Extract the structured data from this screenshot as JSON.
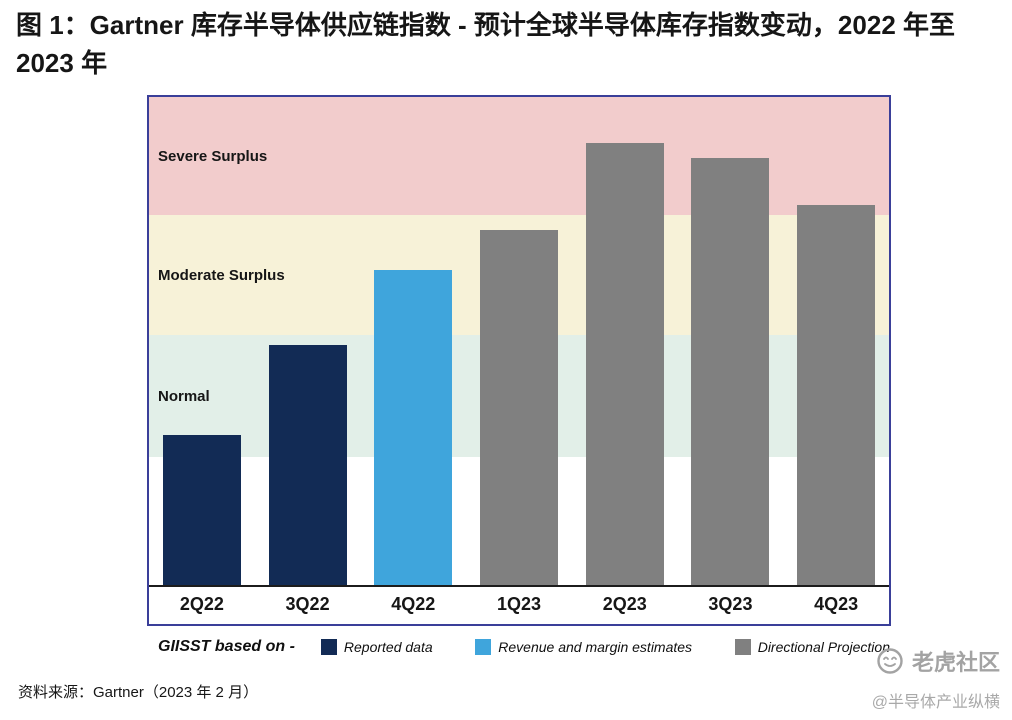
{
  "page": {
    "title": "图 1：Gartner 库存半导体供应链指数 - 预计全球半导体库存指数变动，2022 年至 2023 年",
    "source": "资料来源：Gartner（2023 年 2 月）",
    "watermark_brand": "老虎社区",
    "watermark_handle": "@半导体产业纵横"
  },
  "chart_data": {
    "type": "bar",
    "title": "Gartner 库存半导体供应链指数 (GIISST) - 预计全球半导体库存指数变动，2022 年至 2023 年",
    "categories": [
      "2Q22",
      "3Q22",
      "4Q22",
      "1Q23",
      "2Q23",
      "3Q23",
      "4Q23"
    ],
    "values_pct_of_plot_height": [
      30.7,
      49.2,
      64.5,
      72.7,
      90.6,
      87.5,
      77.9
    ],
    "bar_series": [
      "reported",
      "reported",
      "estimate",
      "projection",
      "projection",
      "projection",
      "projection"
    ],
    "series_colors": {
      "reported": "#122b55",
      "estimate": "#3fa5dc",
      "projection": "#808080"
    },
    "bands": [
      {
        "label": "Severe Surplus",
        "from_pct": 75.8,
        "to_pct": 100,
        "color": "#f2cccc"
      },
      {
        "label": "Moderate Surplus",
        "from_pct": 51.2,
        "to_pct": 75.8,
        "color": "#f7f2d8"
      },
      {
        "label": "Normal",
        "from_pct": 26.2,
        "to_pct": 51.2,
        "color": "#e2efe8"
      },
      {
        "label": "",
        "from_pct": 0,
        "to_pct": 26.2,
        "color": "#ffffff"
      }
    ],
    "legend_title": "GIISST based on -",
    "legend": [
      {
        "label": "Reported data",
        "color": "#122b55"
      },
      {
        "label": "Revenue and margin estimates",
        "color": "#3fa5dc"
      },
      {
        "label": "Directional Projection",
        "color": "#808080"
      }
    ],
    "axis_ranges": {
      "y_numeric_axis_shown": false
    },
    "grid": false,
    "legend_position": "bottom"
  }
}
